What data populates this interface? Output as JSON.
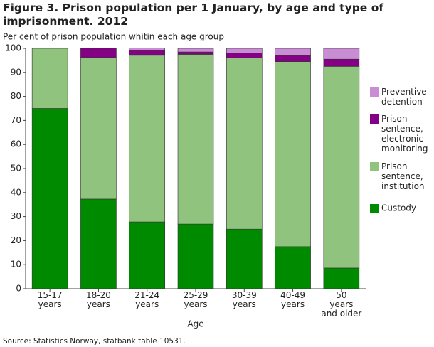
{
  "chart_data": {
    "type": "stacked-bar",
    "title": "Figure 3. Prison population per 1 January, by age and type of imprisonment. 2012",
    "subtitle": "Per cent of prison population whitin each age group",
    "x_label": "Age",
    "source": "Source: Statistics Norway, statbank table 10531.",
    "categories": [
      "15-17\nyears",
      "18-20\nyears",
      "21-24\nyears",
      "25-29\nyears",
      "30-39\nyears",
      "40-49\nyears",
      "50\nyears\nand older"
    ],
    "series": [
      {
        "name": "Custody",
        "color": "#008a00",
        "values": [
          75,
          37.3,
          27.8,
          26.9,
          24.8,
          17.5,
          8.6
        ]
      },
      {
        "name": "Prison\nsentence,\ninstitution",
        "color": "#90c47e",
        "values": [
          25,
          58.9,
          69.3,
          70.6,
          71.2,
          77,
          83.9
        ]
      },
      {
        "name": "Prison\nsentence,\nelectronic\nmonitoring",
        "color": "#840084",
        "values": [
          0,
          3.8,
          2,
          1,
          2,
          2.5,
          3
        ]
      },
      {
        "name": "Preventive\ndetention",
        "color": "#c88dd2",
        "values": [
          0,
          0,
          1,
          1.5,
          2,
          3,
          4.5
        ]
      }
    ],
    "ylim": [
      0,
      100
    ],
    "yticks": [
      0,
      10,
      20,
      30,
      40,
      50,
      60,
      70,
      80,
      90,
      100
    ],
    "grid": false
  }
}
